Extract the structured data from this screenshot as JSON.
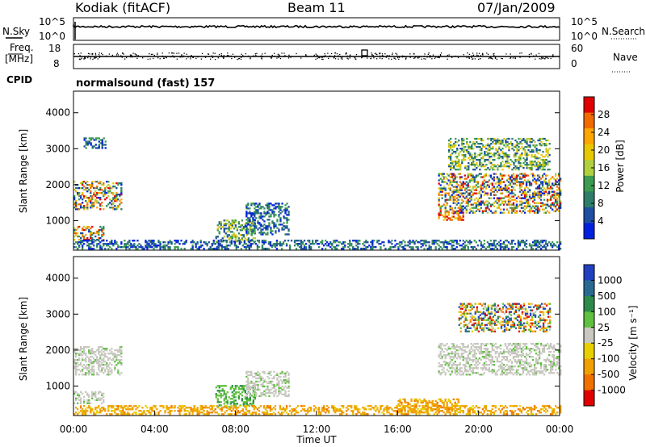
{
  "header": {
    "station": "Kodiak (fitACF)",
    "beam": "Beam 11",
    "date": "07/Jan/2009"
  },
  "status_panels": {
    "nsky_label": "N.Sky",
    "nsearch_label": "N.Search",
    "freq_label": "Freq.",
    "freq_unit": "[MHz]",
    "nave_label": "Nave",
    "cpid_label": "CPID",
    "cpid_text": "normalsound (fast) 157",
    "noise_ticks_left": [
      "10^5",
      "10^0"
    ],
    "noise_ticks_right": [
      "10^5",
      "10^0"
    ],
    "freq_ticks": [
      "18",
      "8"
    ],
    "nave_ticks": [
      "60",
      "0"
    ]
  },
  "colorbars": {
    "power": {
      "label": "Power [dB]",
      "colors": [
        "#e00000",
        "#f06a00",
        "#ffa500",
        "#e8c800",
        "#b0d040",
        "#3c9c50",
        "#2e7d6a",
        "#1f4fa0",
        "#0020e0"
      ],
      "ticks": [
        "28",
        "24",
        "20",
        "16",
        "12",
        "8",
        "4"
      ]
    },
    "velocity": {
      "label": "Velocity [m s⁻¹]",
      "colors": [
        "#2040c0",
        "#2a6a90",
        "#2e8a4a",
        "#60c040",
        "#c8c8c0",
        "#e8d000",
        "#f0a000",
        "#f07000",
        "#e00000"
      ],
      "ticks": [
        "1000",
        "500",
        "100",
        "25",
        "-25",
        "-100",
        "-500",
        "-1000"
      ]
    }
  },
  "chart_data": [
    {
      "type": "heatmap",
      "name": "power",
      "ylabel": "Slant Range [km]",
      "ylim": [
        180,
        4600
      ],
      "yticks": [
        "4000",
        "3000",
        "2000",
        "1000"
      ],
      "xlim": [
        0,
        24
      ],
      "x_unit": "hours UT",
      "regions": [
        {
          "t0": 0.0,
          "t1": 2.4,
          "r0": 1300,
          "r1": 2100,
          "level": "mixed-high"
        },
        {
          "t0": 0.0,
          "t1": 1.5,
          "r0": 450,
          "r1": 850,
          "level": "mixed-high"
        },
        {
          "t0": 0.5,
          "t1": 1.6,
          "r0": 3000,
          "r1": 3300,
          "level": "low"
        },
        {
          "t0": 7.0,
          "t1": 9.0,
          "r0": 400,
          "r1": 1000,
          "level": "mid"
        },
        {
          "t0": 8.5,
          "t1": 10.6,
          "r0": 600,
          "r1": 1500,
          "level": "low"
        },
        {
          "t0": 0.0,
          "t1": 24.0,
          "r0": 200,
          "r1": 450,
          "level": "low"
        },
        {
          "t0": 18.0,
          "t1": 19.2,
          "r0": 1000,
          "r1": 1250,
          "level": "high"
        },
        {
          "t0": 18.0,
          "t1": 24.0,
          "r0": 1200,
          "r1": 2300,
          "level": "mixed-high"
        },
        {
          "t0": 18.5,
          "t1": 23.5,
          "r0": 2400,
          "r1": 3300,
          "level": "mid"
        }
      ]
    },
    {
      "type": "heatmap",
      "name": "velocity",
      "xlabel": "Time UT",
      "ylabel": "Slant Range [km]",
      "ylim": [
        180,
        4600
      ],
      "yticks": [
        "4000",
        "3000",
        "2000",
        "1000"
      ],
      "xlim": [
        0,
        24
      ],
      "xticks": [
        "00:00",
        "04:00",
        "08:00",
        "12:00",
        "16:00",
        "20:00",
        "00:00"
      ],
      "regions": [
        {
          "t0": 0.0,
          "t1": 2.4,
          "r0": 1300,
          "r1": 2100,
          "level": "near-zero"
        },
        {
          "t0": 0.0,
          "t1": 1.5,
          "r0": 500,
          "r1": 850,
          "level": "near-zero"
        },
        {
          "t0": 7.0,
          "t1": 9.0,
          "r0": 400,
          "r1": 1000,
          "level": "positive"
        },
        {
          "t0": 8.5,
          "t1": 10.6,
          "r0": 700,
          "r1": 1400,
          "level": "near-zero"
        },
        {
          "t0": 0.0,
          "t1": 24.0,
          "r0": 200,
          "r1": 450,
          "level": "negative"
        },
        {
          "t0": 16.0,
          "t1": 19.0,
          "r0": 250,
          "r1": 650,
          "level": "negative"
        },
        {
          "t0": 18.0,
          "t1": 24.0,
          "r0": 1300,
          "r1": 2200,
          "level": "near-zero"
        },
        {
          "t0": 19.0,
          "t1": 23.5,
          "r0": 2500,
          "r1": 3300,
          "level": "mixed"
        }
      ]
    }
  ]
}
